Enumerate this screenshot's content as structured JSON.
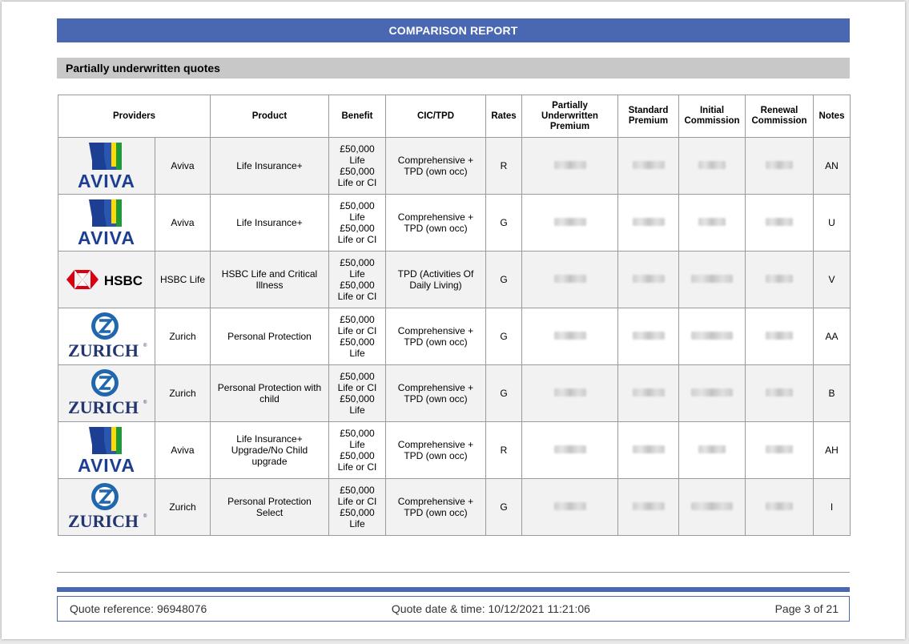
{
  "report": {
    "title": "COMPARISON REPORT",
    "section_title": "Partially underwritten quotes",
    "accent_color": "#4a67b2"
  },
  "table": {
    "headers": {
      "providers": "Providers",
      "product": "Product",
      "benefit": "Benefit",
      "cic_tpd": "CIC/TPD",
      "rates": "Rates",
      "pu_premium": "Partially Underwritten Premium",
      "standard_premium": "Standard Premium",
      "initial_commission": "Initial Commission",
      "renewal_commission": "Renewal Commission",
      "notes": "Notes"
    },
    "rows": [
      {
        "logo": "aviva-logo",
        "provider": "Aviva",
        "product": "Life Insurance+",
        "benefit": "£50,000 Life £50,000 Life or CI",
        "cic_tpd": "Comprehensive + TPD (own occ)",
        "rates": "R",
        "notes": "AN"
      },
      {
        "logo": "aviva-logo",
        "provider": "Aviva",
        "product": "Life Insurance+",
        "benefit": "£50,000 Life £50,000 Life or CI",
        "cic_tpd": "Comprehensive + TPD (own occ)",
        "rates": "G",
        "notes": "U"
      },
      {
        "logo": "hsbc-logo",
        "provider": "HSBC Life",
        "product": "HSBC Life and Critical Illness",
        "benefit": "£50,000 Life £50,000 Life or CI",
        "cic_tpd": "TPD (Activities Of Daily Living)",
        "rates": "G",
        "notes": "V"
      },
      {
        "logo": "zurich-logo",
        "provider": "Zurich",
        "product": "Personal Protection",
        "benefit": "£50,000 Life or CI £50,000 Life",
        "cic_tpd": "Comprehensive + TPD (own occ)",
        "rates": "G",
        "notes": "AA"
      },
      {
        "logo": "zurich-logo",
        "provider": "Zurich",
        "product": "Personal Protection with child",
        "benefit": "£50,000 Life or CI £50,000 Life",
        "cic_tpd": "Comprehensive + TPD (own occ)",
        "rates": "G",
        "notes": "B"
      },
      {
        "logo": "aviva-logo",
        "provider": "Aviva",
        "product": "Life Insurance+ Upgrade/No Child upgrade",
        "benefit": "£50,000 Life £50,000 Life or CI",
        "cic_tpd": "Comprehensive + TPD (own occ)",
        "rates": "R",
        "notes": "AH"
      },
      {
        "logo": "zurich-logo",
        "provider": "Zurich",
        "product": "Personal Protection Select",
        "benefit": "£50,000 Life or CI £50,000 Life",
        "cic_tpd": "Comprehensive + TPD (own occ)",
        "rates": "G",
        "notes": "I"
      }
    ]
  },
  "footer": {
    "quote_reference": "Quote reference: 96948076",
    "quote_datetime": "Quote date & time: 10/12/2021 11:21:06",
    "page": "Page 3 of 21"
  }
}
